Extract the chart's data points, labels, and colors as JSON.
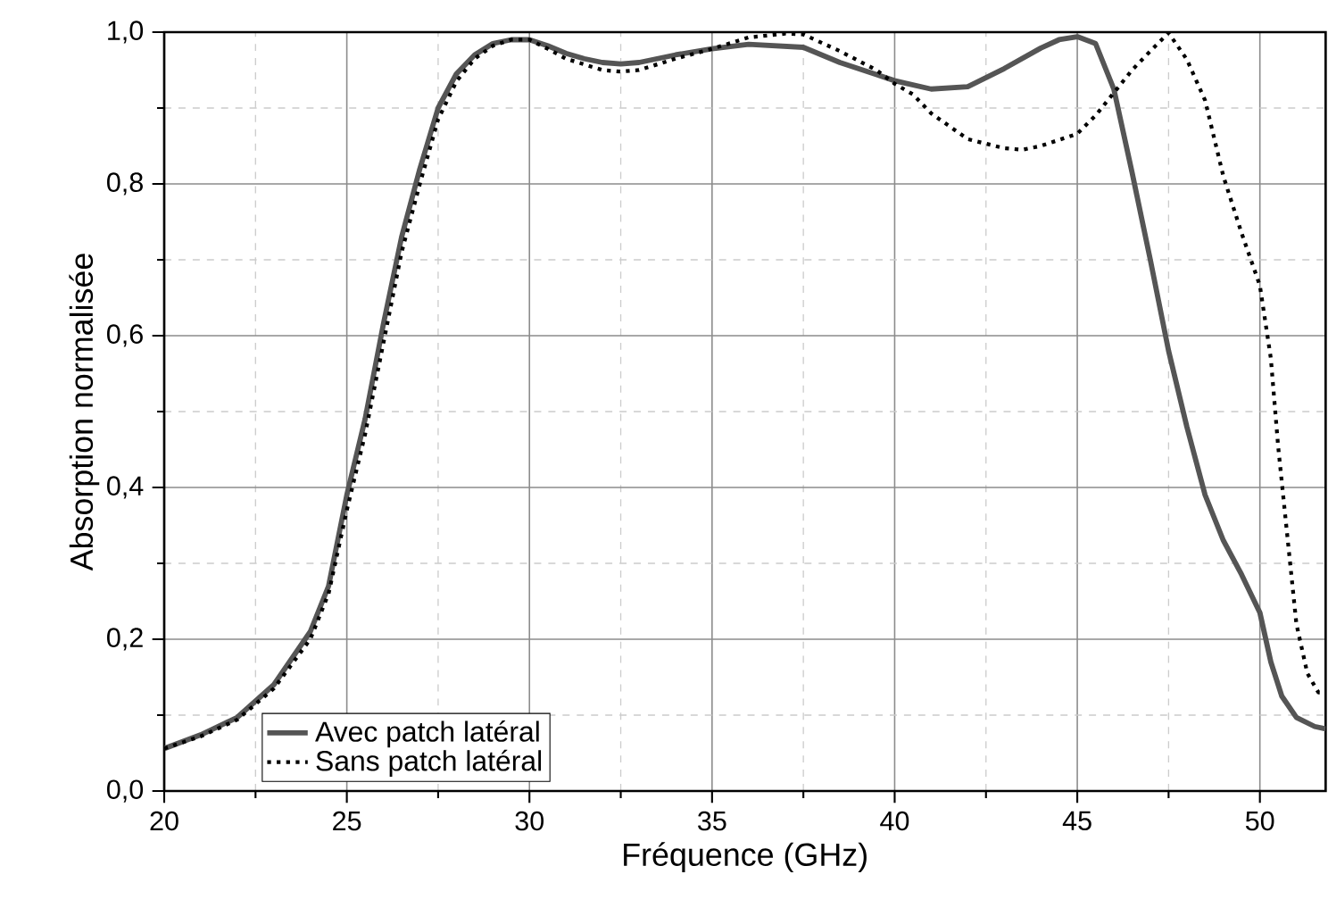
{
  "chart_data": {
    "type": "line",
    "xlabel": "Fréquence (GHz)",
    "ylabel": "Absorption normalisée",
    "xlim": [
      20,
      51.8
    ],
    "ylim": [
      0,
      1
    ],
    "xticks": [
      20,
      25,
      30,
      35,
      40,
      45,
      50
    ],
    "yticks": [
      {
        "value": 0,
        "label": "0,0"
      },
      {
        "value": 0.2,
        "label": "0,2"
      },
      {
        "value": 0.4,
        "label": "0,4"
      },
      {
        "value": 0.6,
        "label": "0,6"
      },
      {
        "value": 0.8,
        "label": "0,8"
      },
      {
        "value": 1,
        "label": "1,0"
      }
    ],
    "grid": true,
    "legend": "bottom left",
    "marker": "none",
    "series": [
      {
        "name": "Avec patch latéral",
        "color": "#555555",
        "line_style": "solid",
        "x": [
          20,
          21,
          22,
          23,
          24,
          24.5,
          25,
          25.5,
          26,
          26.5,
          27,
          27.5,
          28,
          28.5,
          29,
          29.5,
          30,
          30.5,
          31,
          31.5,
          32,
          32.5,
          33,
          34,
          35,
          36,
          37.5,
          38.5,
          39.5,
          40,
          41,
          42,
          43,
          44,
          44.5,
          45,
          45.5,
          46,
          46.5,
          47,
          47.5,
          48,
          48.5,
          49,
          49.5,
          50,
          50.3,
          50.6,
          51,
          51.5,
          51.8
        ],
        "values": [
          0.056,
          0.074,
          0.097,
          0.14,
          0.21,
          0.27,
          0.39,
          0.49,
          0.615,
          0.73,
          0.82,
          0.9,
          0.945,
          0.97,
          0.985,
          0.99,
          0.99,
          0.982,
          0.972,
          0.965,
          0.96,
          0.958,
          0.96,
          0.97,
          0.978,
          0.984,
          0.98,
          0.96,
          0.944,
          0.936,
          0.925,
          0.928,
          0.952,
          0.979,
          0.99,
          0.994,
          0.985,
          0.925,
          0.815,
          0.7,
          0.58,
          0.48,
          0.39,
          0.33,
          0.285,
          0.235,
          0.17,
          0.125,
          0.097,
          0.085,
          0.082
        ]
      },
      {
        "name": "Sans patch latéral",
        "color": "#000000",
        "line_style": "dotted",
        "x": [
          20,
          21,
          22,
          23,
          24,
          24.5,
          25,
          25.5,
          26,
          26.5,
          27,
          27.5,
          28,
          28.5,
          29,
          29.5,
          30,
          30.5,
          31,
          32,
          32.5,
          33,
          34,
          35,
          36,
          37,
          37.5,
          38.5,
          39.5,
          40,
          40.5,
          41,
          42,
          43,
          43.5,
          44,
          44.5,
          45,
          45.5,
          46,
          46.5,
          47,
          47.5,
          48,
          48.5,
          49,
          49.5,
          50,
          50.3,
          50.5,
          50.7,
          51,
          51.3,
          51.6,
          51.8
        ],
        "values": [
          0.056,
          0.072,
          0.094,
          0.135,
          0.2,
          0.26,
          0.37,
          0.47,
          0.59,
          0.71,
          0.8,
          0.885,
          0.935,
          0.965,
          0.982,
          0.99,
          0.99,
          0.978,
          0.965,
          0.95,
          0.948,
          0.95,
          0.965,
          0.978,
          0.993,
          0.998,
          0.997,
          0.975,
          0.95,
          0.932,
          0.918,
          0.893,
          0.859,
          0.847,
          0.845,
          0.85,
          0.858,
          0.866,
          0.89,
          0.92,
          0.95,
          0.975,
          0.999,
          0.964,
          0.91,
          0.81,
          0.735,
          0.666,
          0.57,
          0.454,
          0.36,
          0.22,
          0.155,
          0.13,
          0.13
        ]
      }
    ]
  }
}
